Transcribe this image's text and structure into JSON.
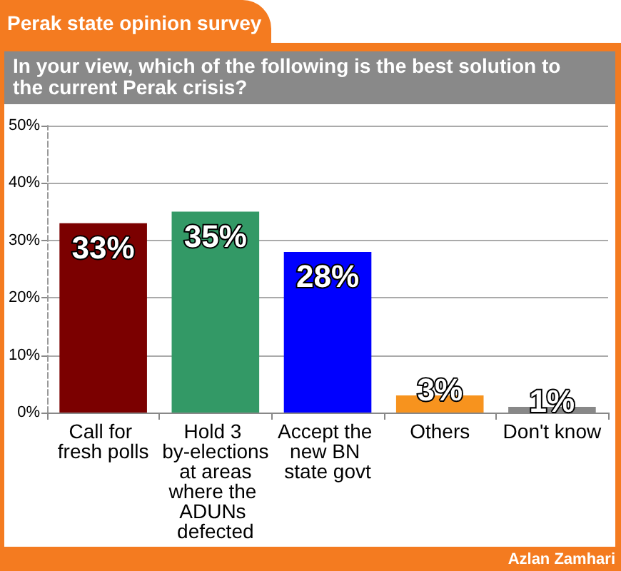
{
  "chart_data": {
    "type": "bar",
    "title": "Perak state opinion survey",
    "subtitle": "In your view, which of the following is the best solution to the current Perak crisis?",
    "categories": [
      "Call for fresh polls",
      "Hold 3 by-elections at areas where the ADUNs defected",
      "Accept the new BN state govt",
      "Others",
      "Don't know"
    ],
    "values": [
      33,
      35,
      28,
      3,
      1
    ],
    "colors": [
      "#7b0000",
      "#339966",
      "#0000ff",
      "#f7931e",
      "#888888"
    ],
    "value_labels": [
      "33%",
      "35%",
      "28%",
      "3%",
      "1%"
    ],
    "ylim": [
      0,
      50
    ],
    "yticks": [
      {
        "value": 0,
        "label": "0%"
      },
      {
        "value": 10,
        "label": "10%"
      },
      {
        "value": 20,
        "label": "20%"
      },
      {
        "value": 30,
        "label": "30%"
      },
      {
        "value": 40,
        "label": "40%"
      },
      {
        "value": 50,
        "label": "50%"
      }
    ],
    "grid": "y",
    "annotations": [
      "Azlan Zamhari"
    ]
  }
}
